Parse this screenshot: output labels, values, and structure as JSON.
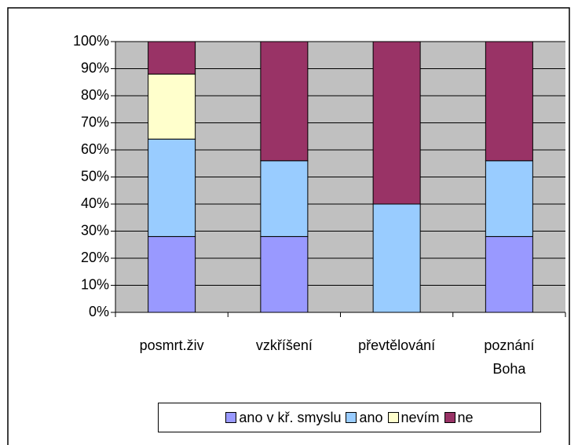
{
  "chart_data": {
    "type": "stacked_bar_100",
    "categories": [
      "posmrt.živ",
      "vzkříšení",
      "převtělování",
      "poznání Boha"
    ],
    "series": [
      {
        "name": "ano v kř. smyslu",
        "color": "#9999ff",
        "values": [
          28,
          28,
          0,
          28
        ]
      },
      {
        "name": "ano",
        "color": "#99ccff",
        "values": [
          36,
          28,
          40,
          28
        ]
      },
      {
        "name": "nevím",
        "color": "#ffffcc",
        "values": [
          24,
          0,
          0,
          0
        ]
      },
      {
        "name": "ne",
        "color": "#993366",
        "values": [
          12,
          44,
          60,
          44
        ]
      }
    ],
    "ylim": [
      0,
      100
    ],
    "yticks": [
      {
        "value": 0,
        "label": "0%"
      },
      {
        "value": 10,
        "label": "10%"
      },
      {
        "value": 20,
        "label": "20%"
      },
      {
        "value": 30,
        "label": "30%"
      },
      {
        "value": 40,
        "label": "40%"
      },
      {
        "value": 50,
        "label": "50%"
      },
      {
        "value": 60,
        "label": "60%"
      },
      {
        "value": 70,
        "label": "70%"
      },
      {
        "value": 80,
        "label": "80%"
      },
      {
        "value": 90,
        "label": "90%"
      },
      {
        "value": 100,
        "label": "100%"
      }
    ],
    "grid": true,
    "legend": "bottom",
    "plot_background": "#c0c0c0"
  }
}
